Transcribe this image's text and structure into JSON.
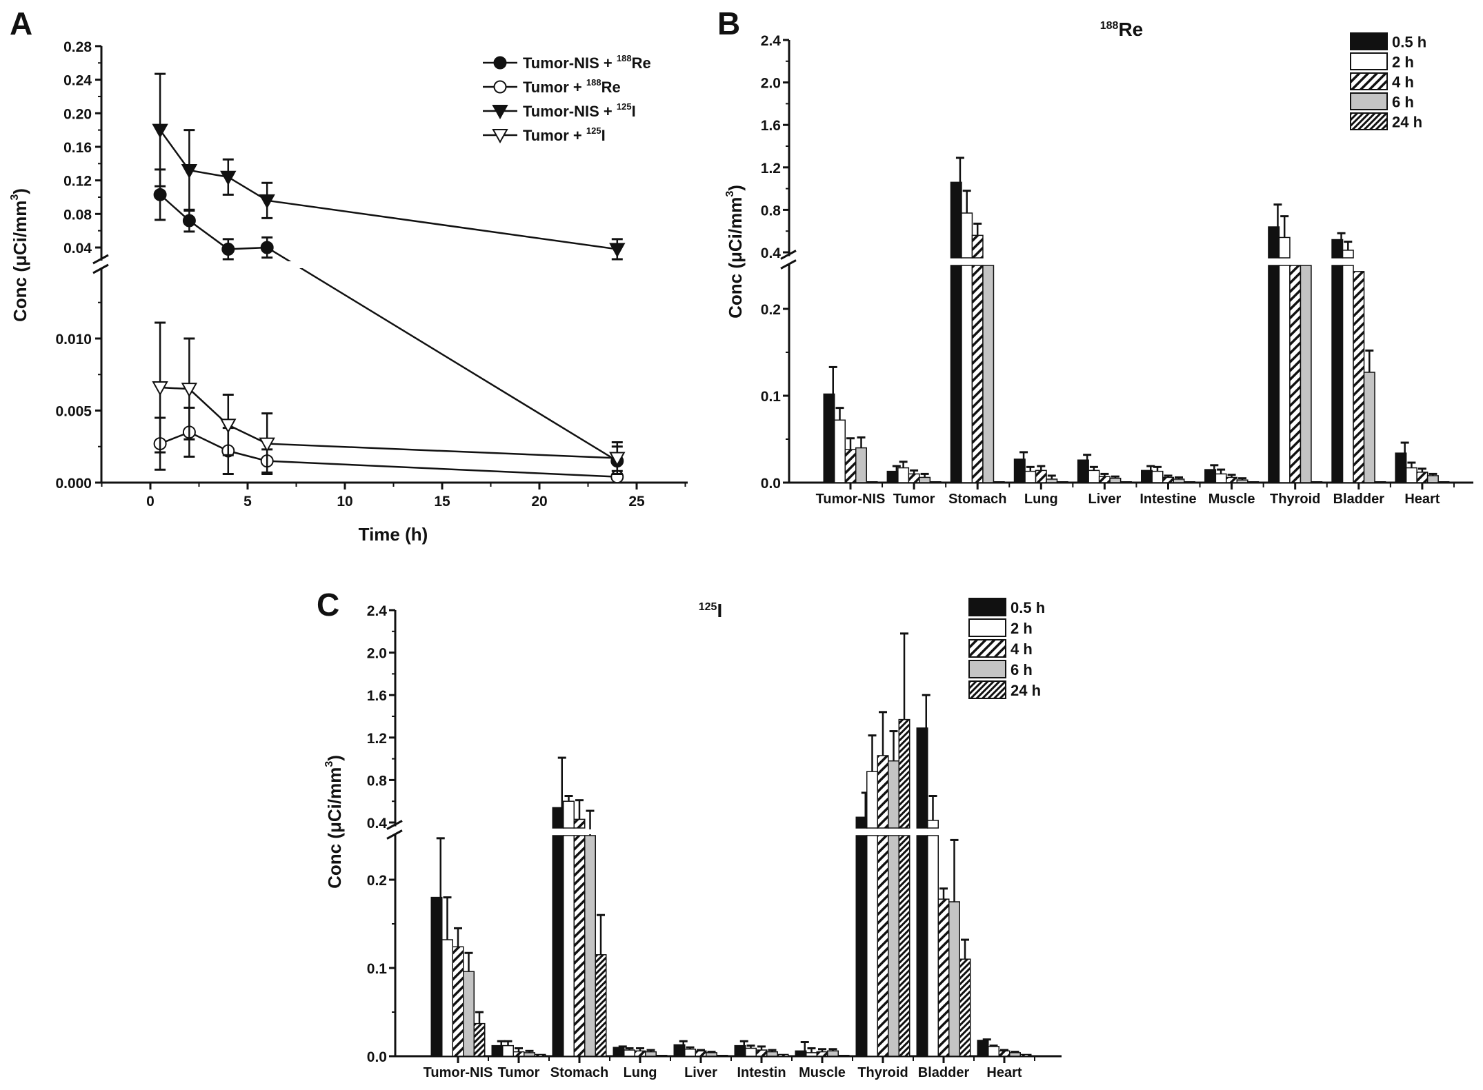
{
  "chart_data": [
    {
      "panel": "A",
      "type": "line",
      "xlabel": "Time (h)",
      "ylabel": "Conc (μCi/mm³)",
      "ylabel_parts": {
        "main": "Conc (μCi/mm",
        "sup": "3",
        "close": ")"
      },
      "xlim": [
        -2.5,
        27.6
      ],
      "ylim_lower": [
        0,
        0.0152
      ],
      "ylim_upper": [
        0.021,
        0.28
      ],
      "axis_break": true,
      "x_ticks": [
        "0",
        "5",
        "10",
        "15",
        "20",
        "25"
      ],
      "x_tick_values": [
        0,
        5,
        10,
        15,
        20,
        25
      ],
      "y_ticks_lower": [
        "0.000",
        "0.005",
        "0.010"
      ],
      "y_tick_values_lower": [
        0,
        0.005,
        0.01
      ],
      "y_ticks_upper": [
        "0.04",
        "0.08",
        "0.12",
        "0.16",
        "0.20",
        "0.24",
        "0.28"
      ],
      "y_tick_values_upper": [
        0.04,
        0.08,
        0.12,
        0.16,
        0.2,
        0.24,
        0.28
      ],
      "legend_position": "top-right",
      "x": [
        0.5,
        2,
        4,
        6,
        24
      ],
      "series": [
        {
          "name": "Tumor-NIS + 188Re",
          "prefix": "Tumor-NIS + ",
          "iso_mass": "188",
          "iso_el": "Re",
          "marker": "filled-circle",
          "values": [
            0.103,
            0.072,
            0.038,
            0.04,
            0.0015
          ],
          "errors": [
            0.03,
            0.013,
            0.012,
            0.012,
            0.001
          ]
        },
        {
          "name": "Tumor + 188Re",
          "prefix": "Tumor + ",
          "iso_mass": "188",
          "iso_el": "Re",
          "marker": "open-circle",
          "values": [
            0.0027,
            0.0035,
            0.0022,
            0.0015,
            0.0004
          ],
          "errors": [
            0.0018,
            0.0017,
            0.0016,
            0.0008,
            0.0004
          ]
        },
        {
          "name": "Tumor-NIS + 125I",
          "prefix": "Tumor-NIS + ",
          "iso_mass": "125",
          "iso_el": "I",
          "marker": "filled-triangle-down",
          "values": [
            0.18,
            0.132,
            0.124,
            0.096,
            0.038
          ],
          "errors": [
            0.067,
            0.048,
            0.021,
            0.021,
            0.012
          ]
        },
        {
          "name": "Tumor + 125I",
          "prefix": "Tumor + ",
          "iso_mass": "125",
          "iso_el": "I",
          "marker": "open-triangle-down",
          "values": [
            0.0066,
            0.0065,
            0.004,
            0.0027,
            0.0017
          ],
          "errors": [
            0.0045,
            0.0035,
            0.0021,
            0.0021,
            0.0011
          ]
        }
      ]
    },
    {
      "panel": "B",
      "type": "bar",
      "title": "188Re",
      "title_parts": {
        "mass": "188",
        "el": "Re"
      },
      "ylabel": "Conc (μCi/mm³)",
      "ylabel_parts": {
        "main": "Conc (μCi/mm",
        "sup": "3",
        "close": ")"
      },
      "axis_break": true,
      "ylim_lower": [
        0,
        0.25
      ],
      "ylim_upper": [
        0.4,
        2.4
      ],
      "y_ticks_lower": [
        "0.0",
        "0.1",
        "0.2"
      ],
      "y_tick_values_lower": [
        0,
        0.1,
        0.2
      ],
      "y_ticks_upper": [
        "0.4",
        "0.8",
        "1.2",
        "1.6",
        "2.0",
        "2.4"
      ],
      "y_tick_values_upper": [
        0.4,
        0.8,
        1.2,
        1.6,
        2.0,
        2.4
      ],
      "legend_position": "top-right",
      "categories": [
        "Tumor-NIS",
        "Tumor",
        "Stomach",
        "Lung",
        "Liver",
        "Intestine",
        "Muscle",
        "Thyroid",
        "Bladder",
        "Heart"
      ],
      "series": [
        {
          "name": "0.5 h",
          "fill": "black",
          "values": [
            0.102,
            0.013,
            1.06,
            0.027,
            0.026,
            0.014,
            0.015,
            0.64,
            0.52,
            0.034
          ],
          "errors": [
            0.031,
            0.006,
            0.23,
            0.008,
            0.006,
            0.005,
            0.005,
            0.21,
            0.06,
            0.012
          ]
        },
        {
          "name": "2 h",
          "fill": "white",
          "values": [
            0.072,
            0.017,
            0.77,
            0.013,
            0.014,
            0.013,
            0.01,
            0.54,
            0.42,
            0.017
          ],
          "errors": [
            0.014,
            0.007,
            0.21,
            0.005,
            0.004,
            0.005,
            0.005,
            0.2,
            0.08,
            0.006
          ]
        },
        {
          "name": "4 h",
          "fill": "hatch",
          "values": [
            0.038,
            0.01,
            0.56,
            0.014,
            0.007,
            0.006,
            0.006,
            0.35,
            0.243,
            0.012
          ],
          "errors": [
            0.013,
            0.004,
            0.11,
            0.005,
            0.003,
            0.002,
            0.003,
            0,
            0,
            0.004
          ]
        },
        {
          "name": "6 h",
          "fill": "gray",
          "values": [
            0.04,
            0.006,
            0.35,
            0.004,
            0.005,
            0.004,
            0.003,
            0.35,
            0.127,
            0.008
          ],
          "errors": [
            0.012,
            0.004,
            0,
            0.004,
            0.002,
            0.002,
            0.002,
            0,
            0.025,
            0.002
          ]
        },
        {
          "name": "24 h",
          "fill": "dense-hatch",
          "values": [
            0.001,
            0.001,
            0.001,
            0.001,
            0.001,
            0.001,
            0.001,
            0.001,
            0.001,
            0.001
          ],
          "errors": [
            0,
            0,
            0,
            0,
            0,
            0,
            0,
            0,
            0,
            0
          ]
        }
      ]
    },
    {
      "panel": "C",
      "type": "bar",
      "title": "125I",
      "title_parts": {
        "mass": "125",
        "el": "I"
      },
      "ylabel": "Conc (μCi/mm³)",
      "ylabel_parts": {
        "main": "Conc (μCi/mm",
        "sup": "3",
        "close": ")"
      },
      "axis_break": true,
      "ylim_lower": [
        0,
        0.25
      ],
      "ylim_upper": [
        0.4,
        2.4
      ],
      "y_ticks_lower": [
        "0.0",
        "0.1",
        "0.2"
      ],
      "y_tick_values_lower": [
        0,
        0.1,
        0.2
      ],
      "y_ticks_upper": [
        "0.4",
        "0.8",
        "1.2",
        "1.6",
        "2.0",
        "2.4"
      ],
      "y_tick_values_upper": [
        0.4,
        0.8,
        1.2,
        1.6,
        2.0,
        2.4
      ],
      "legend_position": "top-right",
      "categories": [
        "Tumor-NIS",
        "Tumor",
        "Stomach",
        "Lung",
        "Liver",
        "Intestin",
        "Muscle",
        "Thyroid",
        "Bladder",
        "Heart"
      ],
      "series": [
        {
          "name": "0.5 h",
          "fill": "black",
          "values": [
            0.18,
            0.012,
            0.54,
            0.01,
            0.013,
            0.012,
            0.006,
            0.45,
            1.29,
            0.018
          ],
          "errors": [
            0.067,
            0.005,
            0.47,
            0.001,
            0.004,
            0.005,
            0.01,
            0.23,
            0.31,
            0.001
          ]
        },
        {
          "name": "2 h",
          "fill": "white",
          "values": [
            0.132,
            0.012,
            0.6,
            0.007,
            0.008,
            0.009,
            0.004,
            0.88,
            0.42,
            0.011
          ],
          "errors": [
            0.048,
            0.005,
            0.05,
            0.002,
            0.002,
            0.003,
            0.005,
            0.34,
            0.23,
            0.001
          ]
        },
        {
          "name": "4 h",
          "fill": "hatch",
          "values": [
            0.124,
            0.005,
            0.43,
            0.006,
            0.006,
            0.007,
            0.005,
            1.03,
            0.178,
            0.006
          ],
          "errors": [
            0.021,
            0.004,
            0.18,
            0.003,
            0.001,
            0.004,
            0.003,
            0.41,
            0.012,
            0.001
          ]
        },
        {
          "name": "6 h",
          "fill": "gray",
          "values": [
            0.096,
            0.004,
            0.37,
            0.005,
            0.004,
            0.005,
            0.006,
            0.98,
            0.175,
            0.004
          ],
          "errors": [
            0.021,
            0.002,
            0.14,
            0.002,
            0.001,
            0.002,
            0.002,
            0.28,
            0.07,
            0.001
          ]
        },
        {
          "name": "24 h",
          "fill": "dense-hatch",
          "values": [
            0.037,
            0.002,
            0.115,
            0.001,
            0.001,
            0.002,
            0.001,
            1.37,
            0.11,
            0.002
          ],
          "errors": [
            0.013,
            0,
            0.045,
            0,
            0,
            0,
            0,
            0.81,
            0.022,
            0
          ]
        }
      ]
    }
  ]
}
